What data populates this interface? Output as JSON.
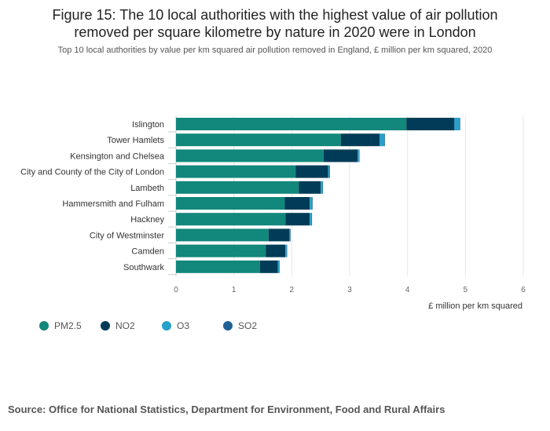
{
  "header": {
    "title_line1": "Figure 15: The 10 local authorities with the highest value of air pollution",
    "title_line2": "removed per square kilometre by nature in 2020 were in London",
    "subtitle": "Top 10 local authorities by value per km squared air pollution removed in England, £ million per km squared, 2020"
  },
  "chart_data": {
    "type": "bar",
    "orientation": "horizontal",
    "stacked": true,
    "categories": [
      "Islington",
      "Tower Hamlets",
      "Kensington and Chelsea",
      "City and County of the City of London",
      "Lambeth",
      "Hammersmith and Fulham",
      "Hackney",
      "City of Westminster",
      "Camden",
      "Southwark"
    ],
    "series": [
      {
        "name": "PM2.5",
        "color": "#12877b",
        "values": [
          3.98,
          2.85,
          2.55,
          2.07,
          2.12,
          1.88,
          1.89,
          1.6,
          1.55,
          1.45
        ]
      },
      {
        "name": "NO2",
        "color": "#003c57",
        "values": [
          0.83,
          0.67,
          0.59,
          0.56,
          0.38,
          0.43,
          0.42,
          0.36,
          0.34,
          0.31
        ]
      },
      {
        "name": "O3",
        "color": "#27a0cc",
        "values": [
          0.09,
          0.08,
          0.02,
          0.02,
          0.03,
          0.04,
          0.03,
          0.01,
          0.02,
          0.02
        ]
      },
      {
        "name": "SO2",
        "color": "#206095",
        "values": [
          0.01,
          0.01,
          0.01,
          0.01,
          0.01,
          0.01,
          0.01,
          0.01,
          0.01,
          0.01
        ]
      }
    ],
    "xlim": [
      0,
      6
    ],
    "xticks": [
      "0",
      "1",
      "2",
      "3",
      "4",
      "5",
      "6"
    ],
    "xlabel": "£ million per km squared",
    "grid": true,
    "legend_position": "bottom-left"
  },
  "source": "Source: Office for National Statistics, Department for Environment, Food and Rural Affairs"
}
